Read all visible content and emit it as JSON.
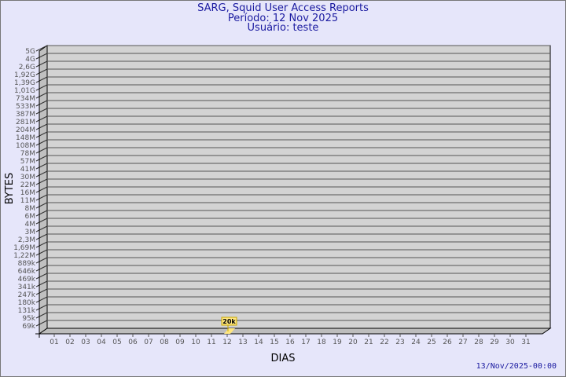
{
  "chart_data": {
    "type": "bar",
    "title": "SARG, Squid User Access Reports",
    "subtitle_period": "Período: 12 Nov 2025",
    "subtitle_user": "Usuário: teste",
    "xlabel": "DIAS",
    "ylabel": "BYTES",
    "y_tick_labels": [
      "5G",
      "4G",
      "2,6G",
      "1,92G",
      "1,39G",
      "1,01G",
      "734M",
      "533M",
      "387M",
      "281M",
      "204M",
      "148M",
      "108M",
      "78M",
      "57M",
      "41M",
      "30M",
      "22M",
      "16M",
      "11M",
      "8M",
      "6M",
      "4M",
      "3M",
      "2,3M",
      "1,69M",
      "1,22M",
      "889k",
      "646k",
      "469k",
      "341k",
      "247k",
      "180k",
      "131k",
      "95k",
      "69k"
    ],
    "categories": [
      "01",
      "02",
      "03",
      "04",
      "05",
      "06",
      "07",
      "08",
      "09",
      "10",
      "11",
      "12",
      "13",
      "14",
      "15",
      "16",
      "17",
      "18",
      "19",
      "20",
      "21",
      "22",
      "23",
      "24",
      "25",
      "26",
      "27",
      "28",
      "29",
      "30",
      "31"
    ],
    "bars": [
      {
        "day": "12",
        "value": 20000,
        "label": "20k"
      }
    ],
    "grid": true,
    "colors": {
      "background": "#e6e6fa",
      "plot": "#d3d3d3",
      "bar": "#ffe680",
      "title": "#1a1aa0"
    }
  },
  "footer": {
    "timestamp": "13/Nov/2025-00:00"
  }
}
